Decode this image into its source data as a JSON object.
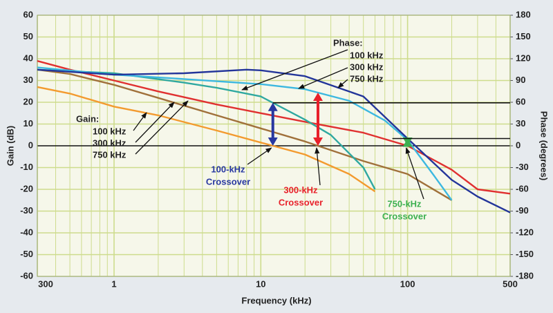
{
  "chart_data": {
    "type": "line",
    "xlabel": "Frequency (kHz)",
    "ylabel": "Gain (dB)",
    "y2label": "Phase (degrees)",
    "xscale": "log",
    "xlim": [
      0.3,
      500
    ],
    "xticks": [
      {
        "value": 0.3,
        "label": "300"
      },
      1,
      10,
      100,
      500
    ],
    "ylim": [
      -60,
      60
    ],
    "yticks": [
      -60,
      -50,
      -40,
      -30,
      -20,
      -10,
      0,
      10,
      20,
      30,
      40,
      50,
      60
    ],
    "y2lim": [
      -180,
      180
    ],
    "y2ticks": [
      -180,
      -150,
      -120,
      -90,
      -60,
      -30,
      0,
      30,
      60,
      90,
      120,
      150,
      180
    ],
    "grid": true,
    "series": [
      {
        "name": "100 kHz",
        "color": "#f39a2e",
        "x": [
          0.3,
          0.5,
          1,
          2,
          5,
          10,
          20,
          40,
          60
        ],
        "values": [
          27,
          24,
          18,
          14,
          7,
          1.5,
          -4,
          -13,
          -21
        ]
      },
      {
        "name": "300 kHz",
        "color": "#a0703a",
        "x": [
          0.3,
          0.5,
          1,
          2,
          5,
          10,
          20,
          50,
          100,
          200
        ],
        "values": [
          35,
          33,
          28,
          22,
          14,
          8,
          2,
          -7,
          -13,
          -25
        ]
      },
      {
        "name": "750 kHz",
        "color": "#e03030",
        "x": [
          0.3,
          0.5,
          1,
          2,
          5,
          10,
          20,
          50,
          100,
          200,
          300,
          500
        ],
        "values": [
          39,
          35,
          30,
          25,
          19,
          15,
          11,
          6,
          0,
          -11,
          -20,
          -22
        ]
      },
      {
        "name": "100 kHz",
        "color": "#2fa8a0",
        "axis": "y2",
        "x": [
          0.3,
          1,
          3,
          5,
          10,
          20,
          30,
          50,
          60
        ],
        "values": [
          105,
          100,
          87,
          80,
          68,
          36,
          15,
          -30,
          -60
        ]
      },
      {
        "name": "300 kHz",
        "color": "#3cb8e0",
        "axis": "y2",
        "x": [
          0.3,
          1,
          3,
          10,
          20,
          40,
          70,
          100,
          150,
          200
        ],
        "values": [
          108,
          98,
          92,
          85,
          78,
          62,
          35,
          8,
          -40,
          -75
        ]
      },
      {
        "name": "750 kHz",
        "color": "#23359a",
        "axis": "y2",
        "x": [
          0.3,
          1,
          3,
          8,
          10,
          20,
          50,
          100,
          200,
          300,
          500
        ],
        "values": [
          105,
          98,
          100,
          105,
          104,
          96,
          68,
          10,
          -47,
          -70,
          -92
        ]
      }
    ],
    "annotations": {
      "gain_label": "Gain:",
      "phase_label": "Phase:",
      "crossovers": [
        {
          "lines": [
            "100-kHz",
            "Crossover"
          ],
          "color": "#2838a0"
        },
        {
          "lines": [
            "300-kHz",
            "Crossover"
          ],
          "color": "#e8202a"
        },
        {
          "lines": [
            "750-kHz",
            "Crossover"
          ],
          "color": "#3cb050"
        }
      ]
    }
  }
}
